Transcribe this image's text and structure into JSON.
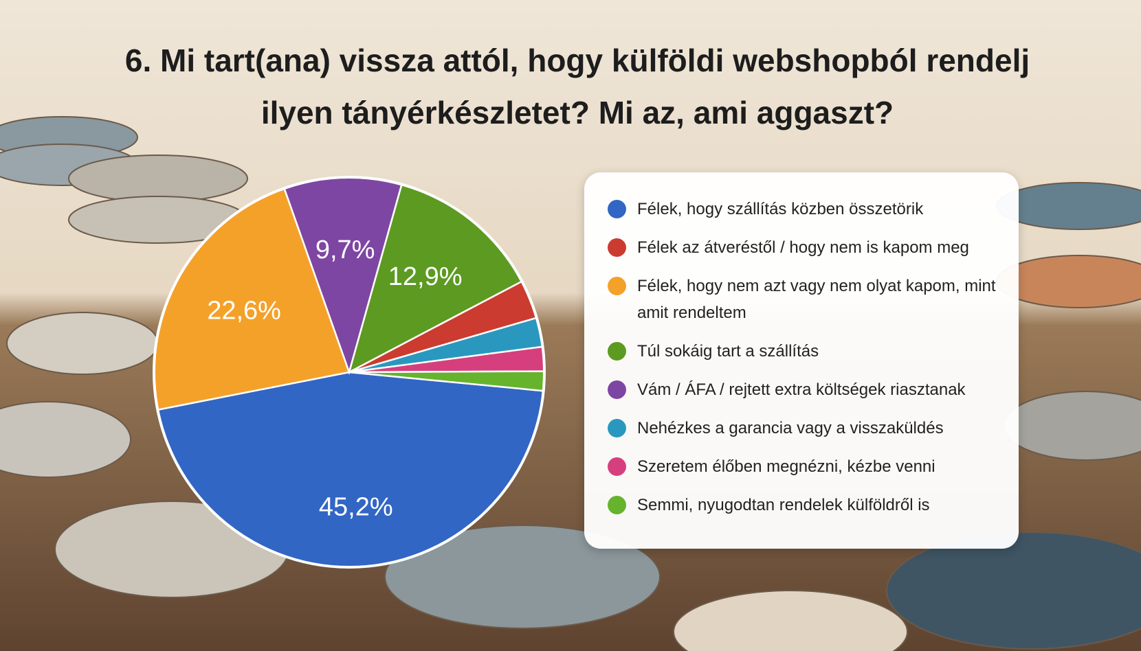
{
  "chart_data": {
    "type": "pie",
    "title": "6. Mi tart(ana) vissza attól, hogy külföldi webshopból rendelj ilyen tányérkészletet? Mi az, ami aggaszt?",
    "series": [
      {
        "name": "Félek, hogy szállítás közben összetörik",
        "color": "#3266c4",
        "values": [
          45.2
        ],
        "value_labels": [
          "45,2%"
        ]
      },
      {
        "name": "Félek az átveréstől / hogy nem is kapom meg",
        "color": "#cc3b30",
        "values": [
          3.2
        ]
      },
      {
        "name": "Félek, hogy nem azt vagy nem olyat kapom, mint amit rendeltem",
        "color": "#f4a12a",
        "values": [
          22.6
        ],
        "value_labels": [
          "22,6%"
        ]
      },
      {
        "name": "Túl sokáig tart a szállítás",
        "color": "#5c9a22",
        "values": [
          12.9
        ],
        "value_labels": [
          "12,9%"
        ]
      },
      {
        "name": "Vám / ÁFA / rejtett extra költségek riasztanak",
        "color": "#7e46a3",
        "values": [
          9.7
        ],
        "value_labels": [
          "9,7%"
        ]
      },
      {
        "name": "Nehézkes a garancia vagy a visszaküldés",
        "color": "#2a98be",
        "values": [
          2.4
        ]
      },
      {
        "name": "Szeretem élőben megnézni, kézbe venni",
        "color": "#d63f7d",
        "values": [
          2.0
        ]
      },
      {
        "name": "Semmi, nyugodtan rendelek külföldről is",
        "color": "#66b32e",
        "values": [
          1.6
        ]
      }
    ]
  }
}
